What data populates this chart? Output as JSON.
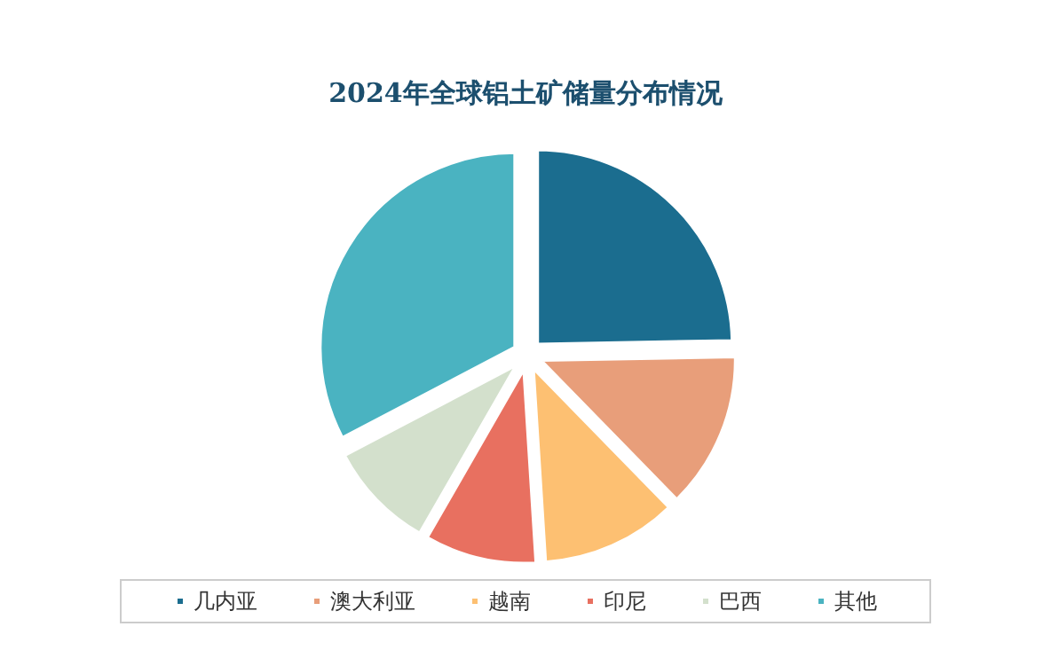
{
  "chart_data": {
    "type": "pie",
    "title": "2024年全球铝土矿储量分布情况",
    "categories": [
      "几内亚",
      "澳大利亚",
      "越南",
      "印尼",
      "巴西",
      "其他"
    ],
    "values": [
      24.7,
      13.0,
      11.3,
      9.3,
      9.0,
      32.7
    ],
    "colors": [
      "#1b6d8f",
      "#e89e7a",
      "#fdc072",
      "#e87060",
      "#d3e0cc",
      "#4ab3c1"
    ],
    "legend": "bottom"
  }
}
